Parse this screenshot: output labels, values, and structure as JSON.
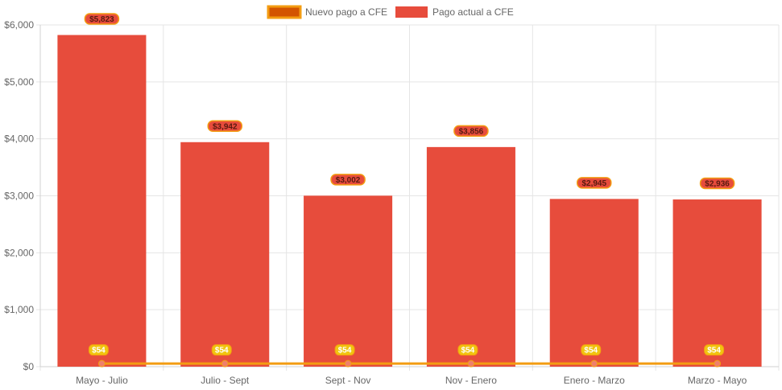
{
  "chart_data": {
    "type": "bar",
    "title": "",
    "xlabel": "",
    "ylabel": "",
    "categories": [
      "Mayo - Julio",
      "Julio - Sept",
      "Sept - Nov",
      "Nov - Enero",
      "Enero - Marzo",
      "Marzo - Mayo"
    ],
    "ylim": [
      0,
      6000
    ],
    "yticks": [
      0,
      1000,
      2000,
      3000,
      4000,
      5000,
      6000
    ],
    "ytick_labels": [
      "$0",
      "$1,000",
      "$2,000",
      "$3,000",
      "$4,000",
      "$5,000",
      "$6,000"
    ],
    "grid": true,
    "legend_position": "top-center",
    "series": [
      {
        "name": "Nuevo pago a CFE",
        "type": "line",
        "values": [
          54,
          54,
          54,
          54,
          54,
          54
        ],
        "labels": [
          "$54",
          "$54",
          "$54",
          "$54",
          "$54",
          "$54"
        ],
        "color": "#f39c12",
        "fill_color": "#d35400"
      },
      {
        "name": "Pago actual a CFE",
        "type": "bar",
        "values": [
          5823,
          3942,
          3002,
          3856,
          2945,
          2936
        ],
        "labels": [
          "$5,823",
          "$3,942",
          "$3,002",
          "$3,856",
          "$2,945",
          "$2,936"
        ],
        "color": "#e74c3c"
      }
    ]
  }
}
